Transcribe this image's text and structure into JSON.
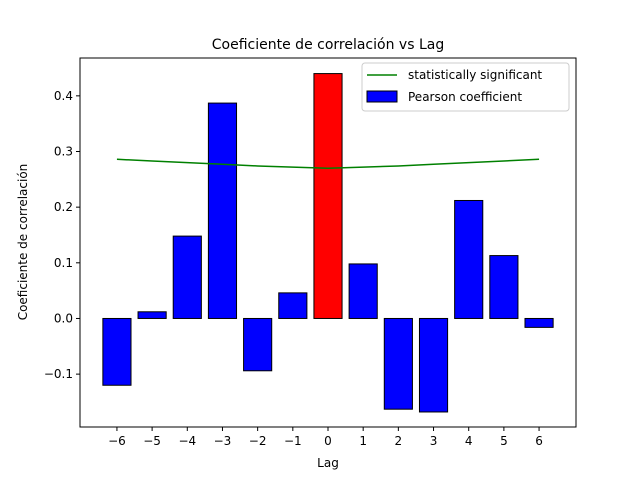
{
  "chart_data": {
    "type": "bar",
    "title": "Coeficiente de correlación vs Lag",
    "xlabel": "Lag",
    "ylabel": "Coeficiente de correlación",
    "x": [
      -6,
      -5,
      -4,
      -3,
      -2,
      -1,
      0,
      1,
      2,
      3,
      4,
      5,
      6
    ],
    "x_tick_labels": [
      "−6",
      "−5",
      "−4",
      "−3",
      "−2",
      "−1",
      "0",
      "1",
      "2",
      "3",
      "4",
      "5",
      "6"
    ],
    "y_ticks": [
      -0.1,
      0.0,
      0.1,
      0.2,
      0.3,
      0.4
    ],
    "y_tick_labels": [
      "−0.1",
      "0.0",
      "0.1",
      "0.2",
      "0.3",
      "0.4"
    ],
    "xlim": [
      -7.05,
      7.05
    ],
    "ylim": [
      -0.195,
      0.468
    ],
    "series": [
      {
        "name": "Pearson coefficient",
        "kind": "bar",
        "values": [
          -0.12,
          0.012,
          0.148,
          0.387,
          -0.094,
          0.046,
          0.44,
          0.098,
          -0.163,
          -0.168,
          0.212,
          0.113,
          -0.016
        ],
        "color": "#0000ff",
        "highlight_index": 6,
        "highlight_color": "#ff0000",
        "edge_color": "#000000"
      },
      {
        "name": "statistically significant",
        "kind": "line",
        "values": [
          0.286,
          0.283,
          0.28,
          0.277,
          0.274,
          0.272,
          0.27,
          0.272,
          0.274,
          0.277,
          0.28,
          0.283,
          0.286
        ],
        "color": "#008000"
      }
    ],
    "legend_position": "top-right",
    "grid": false
  }
}
